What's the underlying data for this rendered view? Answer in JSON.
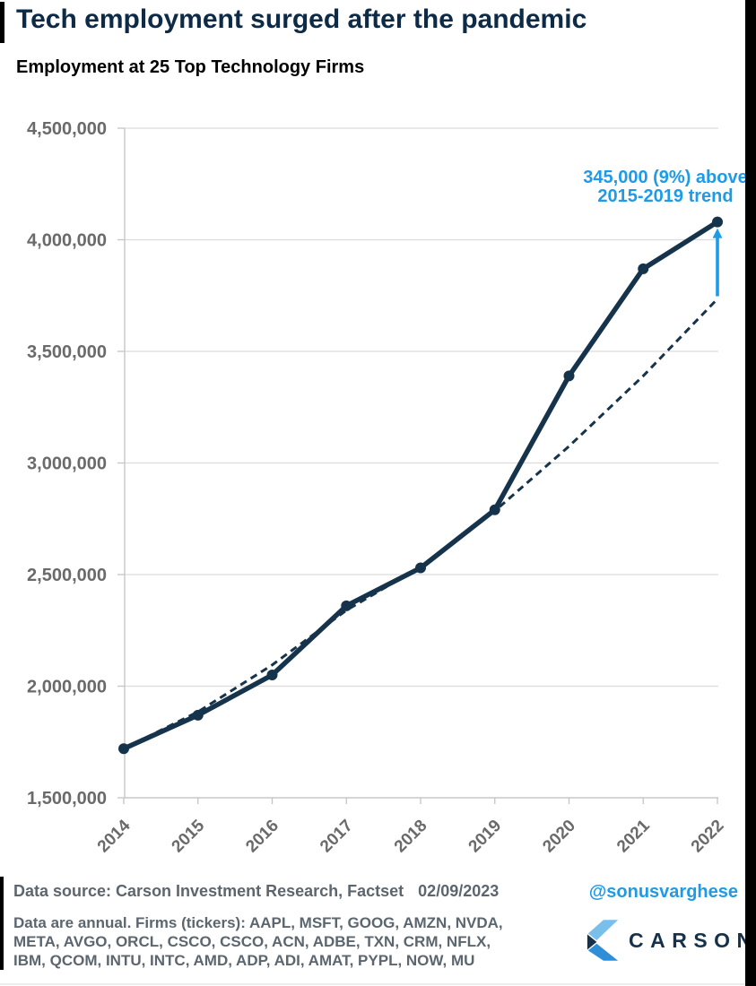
{
  "colors": {
    "navy_line": "#16334c",
    "title_navy": "#0d2b47",
    "accent_blue": "#1d9be9",
    "grid_gray": "#dcdcdc",
    "axis_gray": "#c4c4c4",
    "tick_label_gray": "#6a6a6a",
    "footer_gray": "#5c666f",
    "logo_light_blue": "#79bfea",
    "logo_mid_blue": "#2e8fd8",
    "logo_navy": "#16324b",
    "right_bar_black": "#000000"
  },
  "chart_data": {
    "type": "line",
    "title": "Tech employment surged after the pandemic",
    "subtitle": "Employment at 25 Top Technology Firms",
    "x": [
      "2014",
      "2015",
      "2016",
      "2017",
      "2018",
      "2019",
      "2020",
      "2021",
      "2022"
    ],
    "series": [
      {
        "name": "Employment at 25 top technology firms",
        "style": "solid",
        "markers": true,
        "values": [
          1720000,
          1870000,
          2050000,
          2360000,
          2530000,
          2790000,
          3390000,
          3870000,
          4080000
        ]
      },
      {
        "name": "2015-2019 trend (extrapolated)",
        "style": "dashed",
        "markers": false,
        "values": [
          1720000,
          1885000,
          2095000,
          2340000,
          2535000,
          2785000,
          3075000,
          3390000,
          3735000
        ]
      }
    ],
    "ylim": [
      1500000,
      4500000
    ],
    "yticks": [
      1500000,
      2000000,
      2500000,
      3000000,
      3500000,
      4000000,
      4500000
    ],
    "ytick_labels": [
      "1,500,000",
      "2,000,000",
      "2,500,000",
      "3,000,000",
      "3,500,000",
      "4,000,000",
      "4,500,000"
    ],
    "xlabel": "",
    "ylabel": "",
    "grid": "horizontal",
    "legend": "none",
    "annotation": {
      "line1": "345,000 (9%) above",
      "line2": "2015-2019 trend",
      "arrow_at_x": "2022",
      "gap_value": 345000
    }
  },
  "footer": {
    "source_label": "Data source: Carson Investment Research, Factset",
    "date": "02/09/2023",
    "handle": "@sonusvarghese",
    "note_lines": [
      "Data are annual. Firms (tickers): AAPL, MSFT, GOOG, AMZN, NVDA,",
      "META, AVGO, ORCL, CSCO, CSCO, ACN, ADBE, TXN, CRM, NFLX,",
      "IBM, QCOM, INTU, INTC, AMD, ADP, ADI, AMAT, PYPL, NOW, MU"
    ]
  },
  "branding": {
    "logo_text": "CARSON"
  }
}
